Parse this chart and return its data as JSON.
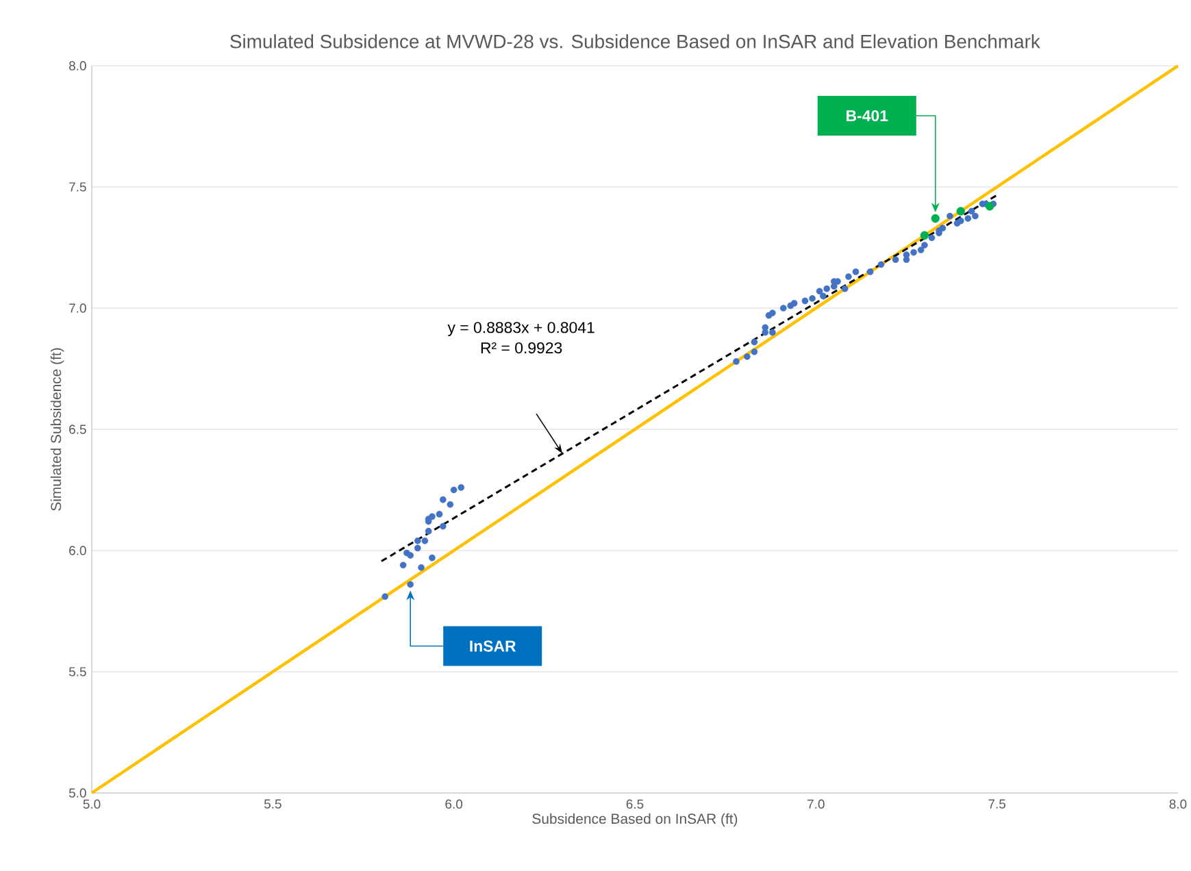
{
  "chart_data": {
    "type": "scatter",
    "title": "Simulated Subsidence at MVWD-28 vs. Subsidence Based on InSAR and Elevation Benchmark",
    "xlabel": "Subsidence Based on InSAR (ft)",
    "ylabel": "Simulated Subsidence (ft)",
    "xlim": [
      5.0,
      8.0
    ],
    "xticks": [
      {
        "value": 5,
        "label": "5.0"
      },
      5.5,
      {
        "value": 6,
        "label": "6.0"
      },
      6.5,
      {
        "value": 7,
        "label": "7.0"
      },
      7.5,
      {
        "value": 8,
        "label": "8.0"
      }
    ],
    "ylim": [
      5.0,
      8.0
    ],
    "yticks": [
      {
        "value": 5,
        "label": "5.0"
      },
      5.5,
      {
        "value": 6,
        "label": "6.0"
      },
      6.5,
      {
        "value": 7,
        "label": "7.0"
      },
      7.5,
      {
        "value": 8,
        "label": "8.0"
      }
    ],
    "grid": "y",
    "series": [
      {
        "type": "line",
        "color": "#ffc000",
        "x": [
          5.0,
          8.0
        ],
        "values": [
          5.0,
          8.0
        ],
        "marker": "none",
        "line_style": "solid"
      },
      {
        "type": "line",
        "color": "#000000",
        "x": [
          5.8,
          7.5
        ],
        "values": [
          5.956,
          7.466
        ],
        "marker": "none",
        "line_style": "dashed"
      },
      {
        "color": "#4472c4",
        "marker": "circle",
        "x": [
          5.81,
          5.88,
          5.86,
          5.91,
          5.94,
          5.87,
          5.88,
          5.9,
          5.9,
          5.92,
          5.93,
          5.93,
          5.94,
          5.93,
          5.97,
          5.96,
          5.97,
          5.99,
          6.0,
          6.02,
          6.78,
          6.81,
          6.83,
          6.83,
          6.86,
          6.86,
          6.88,
          6.87,
          6.88,
          6.91,
          6.93,
          6.94,
          6.97,
          6.99,
          7.01,
          7.02,
          7.05,
          7.05,
          7.06,
          7.03,
          7.08,
          7.09,
          7.11,
          7.15,
          7.18,
          7.22,
          7.25,
          7.25,
          7.27,
          7.29,
          7.3,
          7.32,
          7.34,
          7.35,
          7.37,
          7.39,
          7.4,
          7.42,
          7.44,
          7.46,
          7.47,
          7.49,
          7.43,
          7.34
        ],
        "values": [
          5.81,
          5.86,
          5.94,
          5.93,
          5.97,
          5.99,
          5.98,
          6.01,
          6.04,
          6.04,
          6.08,
          6.13,
          6.14,
          6.12,
          6.1,
          6.15,
          6.21,
          6.19,
          6.25,
          6.26,
          6.78,
          6.8,
          6.82,
          6.86,
          6.92,
          6.9,
          6.9,
          6.97,
          6.98,
          7.0,
          7.01,
          7.02,
          7.03,
          7.04,
          7.07,
          7.05,
          7.09,
          7.11,
          7.11,
          7.08,
          7.08,
          7.13,
          7.15,
          7.15,
          7.18,
          7.2,
          7.22,
          7.2,
          7.23,
          7.24,
          7.26,
          7.29,
          7.31,
          7.33,
          7.38,
          7.35,
          7.36,
          7.37,
          7.38,
          7.43,
          7.43,
          7.43,
          7.4,
          7.32
        ]
      },
      {
        "color": "#00b050",
        "marker": "circle",
        "x": [
          7.33,
          7.3,
          7.4,
          7.48
        ],
        "values": [
          7.37,
          7.3,
          7.4,
          7.42
        ]
      }
    ],
    "annotations": [
      "y = 0.8883x + 0.8041",
      "R² = 0.9923",
      "InSAR",
      "B-401"
    ]
  }
}
